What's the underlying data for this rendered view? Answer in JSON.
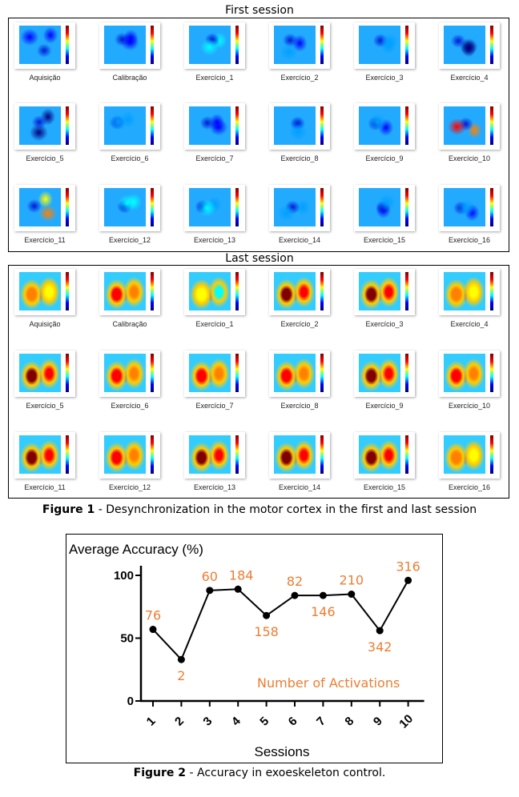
{
  "figure1": {
    "first_title": "First session",
    "last_title": "Last session",
    "caption_label": "Figure 1",
    "caption_text": " - Desynchronization in the motor cortex in the first and last session",
    "labels": [
      "Aquisição",
      "Calibração",
      "Exercício_1",
      "Exercício_2",
      "Exercício_3",
      "Exercício_4",
      "Exercício_5",
      "Exercício_6",
      "Exercício_7",
      "Exercício_8",
      "Exercício_9",
      "Exercício_10",
      "Exercício_11",
      "Exercício_12",
      "Exercício_13",
      "Exercício_14",
      "Exercício_15",
      "Exercício_16"
    ],
    "colormap": [
      "#000080",
      "#0000ff",
      "#00a0ff",
      "#00ffff",
      "#ffff00",
      "#ff8000",
      "#ff0000",
      "#800000"
    ],
    "first_activation": [
      0.1,
      0.1,
      0.45,
      0.25,
      0.3,
      0.05,
      0.05,
      0.35,
      0.1,
      0.3,
      0.25,
      0.85,
      0.65,
      0.45,
      0.4,
      0.3,
      0.25,
      0.25
    ],
    "last_activation": [
      0.75,
      0.8,
      0.55,
      0.95,
      1.0,
      0.75,
      0.95,
      0.85,
      0.85,
      0.85,
      0.95,
      0.85,
      0.95,
      0.9,
      0.95,
      1.0,
      0.95,
      0.75
    ]
  },
  "chart_data": {
    "type": "line",
    "title": "Average Accuracy (%)",
    "xlabel": "Sessions",
    "ylabel": "Average Accuracy (%)",
    "x": [
      1,
      2,
      3,
      4,
      5,
      6,
      7,
      8,
      9,
      10
    ],
    "x_tick_labels": [
      "1",
      "2",
      "3",
      "4",
      "5",
      "6",
      "7",
      "8",
      "9",
      "10"
    ],
    "y_ticks": [
      0,
      50,
      100
    ],
    "y_tick_labels": [
      "0",
      "50",
      "100"
    ],
    "ylim": [
      0,
      100
    ],
    "series": [
      {
        "name": "Average Accuracy",
        "values": [
          57,
          33,
          88,
          89,
          68,
          84,
          84,
          85,
          56,
          96
        ],
        "color": "#000000"
      }
    ],
    "annotations": {
      "name": "Number of Activations",
      "values": [
        "76",
        "2",
        "60",
        "184",
        "158",
        "82",
        "146",
        "210",
        "342",
        "316"
      ],
      "positions": [
        "above",
        "below",
        "above",
        "above",
        "below",
        "above",
        "below",
        "above",
        "below",
        "above"
      ],
      "color": "#ed7d31"
    },
    "grid": false
  },
  "figure2": {
    "caption_label": "Figure 2",
    "caption_text": " - Accuracy in exoeskeleton control."
  }
}
